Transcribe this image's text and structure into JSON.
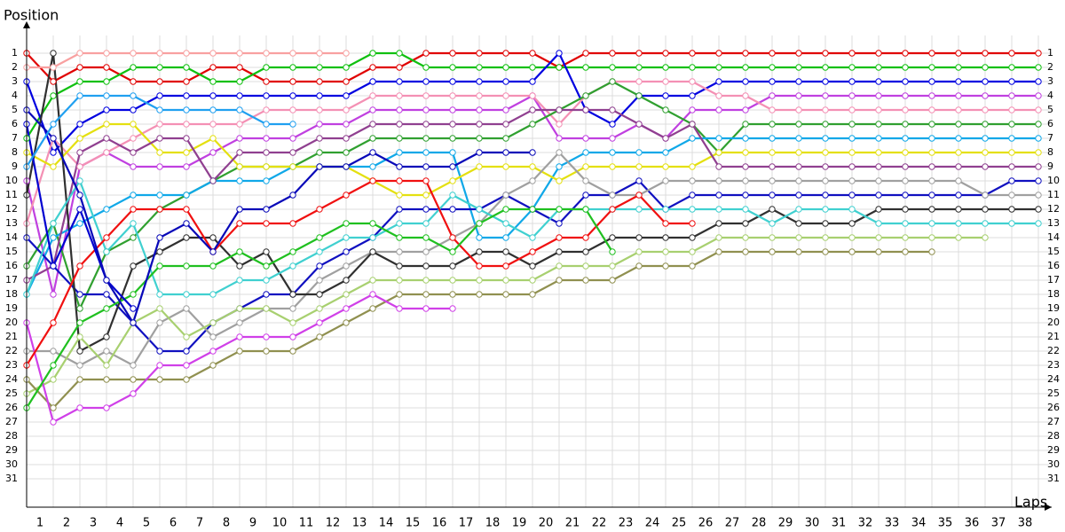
{
  "chart_data": {
    "type": "line",
    "y_label": "Position",
    "x_label": "Laps",
    "x": [
      0,
      1,
      2,
      3,
      4,
      5,
      6,
      7,
      8,
      9,
      10,
      11,
      12,
      13,
      14,
      15,
      16,
      17,
      18,
      19,
      20,
      21,
      22,
      23,
      24,
      25,
      26,
      27,
      28,
      29,
      30,
      31,
      32,
      33,
      34,
      35,
      36,
      37,
      38
    ],
    "xlim": [
      0,
      38.5
    ],
    "ylim": [
      33,
      -3
    ],
    "xticks": [
      1,
      2,
      3,
      4,
      5,
      6,
      7,
      8,
      9,
      10,
      11,
      12,
      13,
      14,
      15,
      16,
      17,
      18,
      19,
      20,
      21,
      22,
      23,
      24,
      25,
      26,
      27,
      28,
      29,
      30,
      31,
      32,
      33,
      34,
      35,
      36,
      37,
      38
    ],
    "yticks": [
      1,
      2,
      3,
      4,
      5,
      6,
      7,
      8,
      9,
      10,
      11,
      12,
      13,
      14,
      15,
      16,
      17,
      18,
      19,
      20,
      21,
      22,
      23,
      24,
      25,
      26,
      27,
      28,
      29,
      30,
      31
    ],
    "grid": true,
    "marker_color": "#ffffff",
    "series": [
      {
        "color": "#e00000",
        "values": [
          1,
          3,
          2,
          2,
          3,
          3,
          3,
          2,
          2,
          3,
          3,
          3,
          3,
          2,
          2,
          1,
          1,
          1,
          1,
          1,
          2,
          1,
          1,
          1,
          1,
          1,
          1,
          1,
          1,
          1,
          1,
          1,
          1,
          1,
          1,
          1,
          1,
          1,
          1
        ]
      },
      {
        "color": "#10c010",
        "values": [
          7,
          4,
          3,
          3,
          2,
          2,
          2,
          3,
          3,
          2,
          2,
          2,
          2,
          1,
          1,
          2,
          2,
          2,
          2,
          2,
          2,
          2,
          2,
          2,
          2,
          2,
          2,
          2,
          2,
          2,
          2,
          2,
          2,
          2,
          2,
          2,
          2,
          2,
          2
        ]
      },
      {
        "color": "#0000e0",
        "values": [
          3,
          8,
          6,
          5,
          5,
          4,
          4,
          4,
          4,
          4,
          4,
          4,
          4,
          3,
          3,
          3,
          3,
          3,
          3,
          3,
          1,
          5,
          6,
          4,
          4,
          4,
          3,
          3,
          3,
          3,
          3,
          3,
          3,
          3,
          3,
          3,
          3,
          3,
          3
        ]
      },
      {
        "color": "#c040e0",
        "values": [
          10,
          18,
          9,
          8,
          9,
          9,
          9,
          8,
          7,
          7,
          7,
          6,
          6,
          5,
          5,
          5,
          5,
          5,
          5,
          4,
          7,
          7,
          7,
          6,
          7,
          5,
          5,
          5,
          4,
          4,
          4,
          4,
          4,
          4,
          4,
          4,
          4,
          4,
          4
        ]
      },
      {
        "color": "#f490b4",
        "values": [
          13,
          7,
          9,
          8,
          7,
          6,
          6,
          6,
          6,
          5,
          5,
          5,
          5,
          4,
          4,
          4,
          4,
          4,
          4,
          4,
          6,
          4,
          3,
          3,
          3,
          3,
          4,
          4,
          5,
          5,
          5,
          5,
          5,
          5,
          5,
          5,
          5,
          5,
          5
        ]
      },
      {
        "color": "#30a030",
        "values": [
          16,
          13,
          19,
          15,
          14,
          12,
          11,
          10,
          9,
          9,
          9,
          8,
          8,
          7,
          7,
          7,
          7,
          7,
          7,
          6,
          5,
          4,
          3,
          4,
          5,
          6,
          8,
          6,
          6,
          6,
          6,
          6,
          6,
          6,
          6,
          6,
          6,
          6,
          6
        ]
      },
      {
        "color": "#10a8e8",
        "values": [
          18,
          14,
          13,
          12,
          11,
          11,
          11,
          10,
          10,
          10,
          9,
          9,
          9,
          9,
          8,
          8,
          8,
          14,
          14,
          12,
          9,
          8,
          8,
          8,
          8,
          7,
          7,
          7,
          7,
          7,
          7,
          7,
          7,
          7,
          7,
          7,
          7,
          7,
          7
        ]
      },
      {
        "color": "#e4e010",
        "values": [
          8,
          9,
          7,
          6,
          6,
          8,
          8,
          7,
          9,
          9,
          9,
          9,
          9,
          10,
          11,
          11,
          10,
          9,
          9,
          9,
          10,
          9,
          9,
          9,
          9,
          9,
          8,
          8,
          8,
          8,
          8,
          8,
          8,
          8,
          8,
          8,
          8,
          8,
          8
        ]
      },
      {
        "color": "#904090",
        "values": [
          17,
          16,
          8,
          7,
          8,
          7,
          7,
          10,
          8,
          8,
          8,
          7,
          7,
          6,
          6,
          6,
          6,
          6,
          6,
          5,
          5,
          5,
          5,
          6,
          7,
          6,
          9,
          9,
          9,
          9,
          9,
          9,
          9,
          9,
          9,
          9,
          9,
          9,
          9
        ]
      },
      {
        "color": "#1010c0",
        "values": [
          14,
          16,
          18,
          18,
          20,
          22,
          22,
          20,
          19,
          18,
          18,
          16,
          15,
          14,
          12,
          12,
          12,
          12,
          11,
          12,
          13,
          11,
          11,
          10,
          12,
          11,
          11,
          11,
          11,
          11,
          11,
          11,
          11,
          11,
          11,
          11,
          11,
          10,
          10
        ]
      },
      {
        "color": "#a0a0a0",
        "values": [
          22,
          22,
          23,
          22,
          23,
          20,
          19,
          21,
          20,
          19,
          19,
          17,
          16,
          15,
          15,
          15,
          14,
          13,
          11,
          10,
          8,
          10,
          11,
          11,
          10,
          10,
          10,
          10,
          10,
          10,
          10,
          10,
          10,
          10,
          10,
          10,
          11,
          11,
          11
        ]
      },
      {
        "color": "#303030",
        "values": [
          11,
          1,
          22,
          21,
          16,
          15,
          14,
          14,
          16,
          15,
          18,
          18,
          17,
          15,
          16,
          16,
          16,
          15,
          15,
          16,
          15,
          15,
          14,
          14,
          14,
          14,
          13,
          13,
          12,
          13,
          13,
          13,
          12,
          12,
          12,
          12,
          12,
          12,
          12
        ]
      },
      {
        "color": "#40d0d0",
        "values": [
          18,
          13,
          10,
          15,
          13,
          18,
          18,
          18,
          17,
          17,
          16,
          15,
          14,
          14,
          13,
          13,
          11,
          12,
          13,
          14,
          12,
          12,
          12,
          12,
          12,
          12,
          12,
          12,
          13,
          12,
          12,
          12,
          13,
          13,
          13,
          13,
          13,
          13,
          13
        ]
      },
      {
        "color": "#a8d070",
        "values": [
          25,
          24,
          21,
          23,
          20,
          19,
          21,
          20,
          19,
          19,
          20,
          19,
          18,
          17,
          17,
          17,
          17,
          17,
          17,
          17,
          16,
          16,
          16,
          15,
          15,
          15,
          14,
          14,
          14,
          14,
          14,
          14,
          14,
          14,
          14,
          14,
          14,
          null,
          null
        ]
      },
      {
        "color": "#909050",
        "values": [
          24,
          26,
          24,
          24,
          24,
          24,
          24,
          23,
          22,
          22,
          22,
          21,
          20,
          19,
          18,
          18,
          18,
          18,
          18,
          18,
          17,
          17,
          17,
          16,
          16,
          16,
          15,
          15,
          15,
          15,
          15,
          15,
          15,
          15,
          15,
          null,
          null,
          null,
          null
        ]
      },
      {
        "color": "#f8a0a0",
        "values": [
          2,
          2,
          1,
          1,
          1,
          1,
          1,
          1,
          1,
          1,
          1,
          1,
          1,
          null,
          null,
          null,
          null,
          null,
          null,
          null,
          null,
          null,
          null,
          null,
          null,
          null,
          null,
          null,
          null,
          null,
          null,
          null,
          null,
          null,
          null,
          null,
          null,
          null,
          null
        ]
      },
      {
        "color": "#d040e8",
        "values": [
          20,
          27,
          26,
          26,
          25,
          23,
          23,
          22,
          21,
          21,
          21,
          20,
          19,
          18,
          19,
          19,
          19,
          null,
          null,
          null,
          null,
          null,
          null,
          null,
          null,
          null,
          null,
          null,
          null,
          null,
          null,
          null,
          null,
          null,
          null,
          null,
          null,
          null,
          null
        ]
      },
      {
        "color": "#f01010",
        "values": [
          23,
          20,
          16,
          14,
          12,
          12,
          12,
          15,
          13,
          13,
          13,
          12,
          11,
          10,
          10,
          10,
          14,
          16,
          16,
          15,
          14,
          14,
          12,
          11,
          13,
          13,
          null,
          null,
          null,
          null,
          null,
          null,
          null,
          null,
          null,
          null,
          null,
          null,
          null
        ]
      },
      {
        "color": "#20c020",
        "values": [
          26,
          23,
          20,
          19,
          18,
          16,
          16,
          16,
          15,
          16,
          15,
          14,
          13,
          13,
          14,
          14,
          15,
          13,
          12,
          12,
          12,
          12,
          15,
          null,
          null,
          null,
          null,
          null,
          null,
          null,
          null,
          null,
          null,
          null,
          null,
          null,
          null,
          null,
          null
        ]
      },
      {
        "color": "#0000d0",
        "values": [
          6,
          16,
          12,
          17,
          19,
          null,
          null,
          null,
          null,
          null,
          null,
          null,
          null,
          null,
          null,
          null,
          null,
          null,
          null,
          null,
          null,
          null,
          null,
          null,
          null,
          null,
          null,
          null,
          null,
          null,
          null,
          null,
          null,
          null,
          null,
          null,
          null,
          null,
          null
        ]
      },
      {
        "color": "#0808b8",
        "values": [
          5,
          7,
          11,
          17,
          20,
          14,
          13,
          15,
          12,
          12,
          11,
          9,
          9,
          8,
          9,
          9,
          9,
          8,
          8,
          8,
          null,
          null,
          null,
          null,
          null,
          null,
          null,
          null,
          null,
          null,
          null,
          null,
          null,
          null,
          null,
          null,
          null,
          null,
          null
        ]
      },
      {
        "color": "#20a0f0",
        "values": [
          9,
          6,
          4,
          4,
          4,
          5,
          5,
          5,
          5,
          6,
          6,
          null,
          null,
          null,
          null,
          null,
          null,
          null,
          null,
          null,
          null,
          null,
          null,
          null,
          null,
          null,
          null,
          null,
          null,
          null,
          null,
          null,
          null,
          null,
          null,
          null,
          null,
          null,
          null
        ]
      }
    ]
  }
}
